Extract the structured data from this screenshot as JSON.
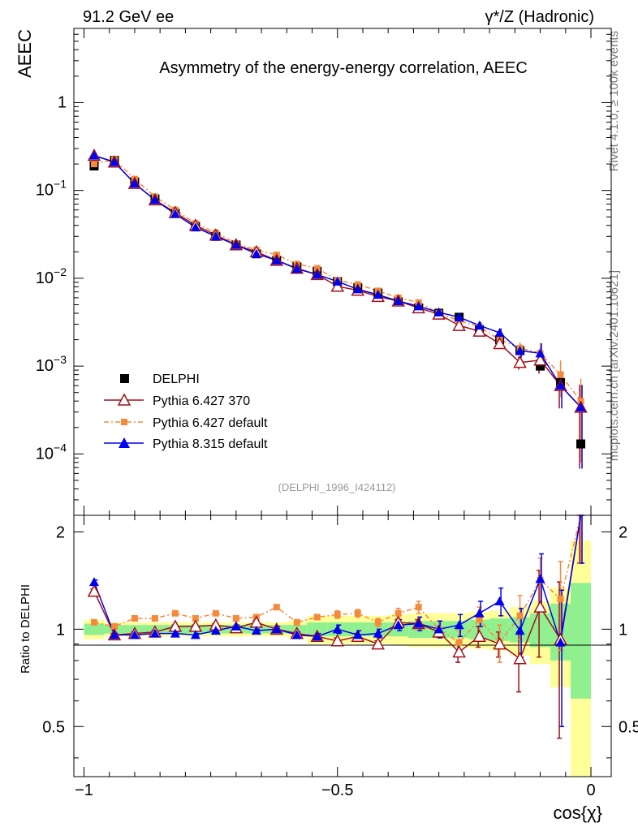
{
  "header": {
    "left": "91.2 GeV ee",
    "right": "γ*/Z (Hadronic)"
  },
  "side_labels": {
    "top": "Rivet 4.1.0, ≥ 100k events",
    "bottom": "mcplots.cern.ch [arXiv:2401.10621]"
  },
  "chart_data": [
    {
      "type": "line",
      "title": "Asymmetry of the energy-energy correlation, AEEC",
      "ylabel": "AEEC",
      "xlabel": "cos{χ}",
      "yscale": "log",
      "ylim": [
        2e-05,
        7
      ],
      "xlim": [
        -1.02,
        0.04
      ],
      "analysis_label": "(DELPHI_1996_I424112)",
      "legend_position": "bottom-left",
      "y_ticks": [
        {
          "value": 0.0001,
          "base": "10",
          "exp": "−4"
        },
        {
          "value": 0.001,
          "base": "10",
          "exp": "−3"
        },
        {
          "value": 0.01,
          "base": "10",
          "exp": "−2"
        },
        {
          "value": 0.1,
          "base": "10",
          "exp": "−1"
        },
        {
          "value": 1,
          "base": "1",
          "exp": ""
        }
      ],
      "x": [
        -0.98,
        -0.94,
        -0.9,
        -0.86,
        -0.82,
        -0.78,
        -0.74,
        -0.7,
        -0.66,
        -0.62,
        -0.58,
        -0.54,
        -0.5,
        -0.46,
        -0.42,
        -0.38,
        -0.34,
        -0.3,
        -0.26,
        -0.22,
        -0.18,
        -0.14,
        -0.1,
        -0.06,
        -0.02
      ],
      "series": [
        {
          "name": "DELPHI",
          "color": "#000000",
          "marker": "square",
          "values": [
            0.19,
            0.22,
            0.125,
            0.08,
            0.055,
            0.039,
            0.03,
            0.024,
            0.019,
            0.016,
            0.0135,
            0.012,
            0.0092,
            0.0078,
            0.0068,
            0.0054,
            0.0046,
            0.004,
            0.0036,
            0.0026,
            0.002,
            0.0015,
            0.001,
            0.00065,
            0.00013
          ]
        },
        {
          "name": "Pythia 6.427 370",
          "color": "#a0101a",
          "marker": "triangle-open",
          "values": [
            0.25,
            0.21,
            0.12,
            0.078,
            0.056,
            0.04,
            0.031,
            0.024,
            0.02,
            0.016,
            0.013,
            0.011,
            0.0081,
            0.0073,
            0.0062,
            0.0055,
            0.0046,
            0.0039,
            0.0029,
            0.0025,
            0.0018,
            0.0011,
            0.00117,
            0.0006,
            0.00034
          ]
        },
        {
          "name": "Pythia 6.427 default",
          "color": "#f58a3c",
          "marker": "square",
          "values": [
            0.2,
            0.225,
            0.135,
            0.085,
            0.06,
            0.042,
            0.033,
            0.025,
            0.021,
            0.0185,
            0.0145,
            0.013,
            0.0095,
            0.0085,
            0.0072,
            0.006,
            0.0053,
            0.004,
            0.0033,
            0.0028,
            0.002,
            0.0016,
            0.0014,
            0.0008,
            0.0004
          ]
        },
        {
          "name": "Pythia 8.315 default",
          "color": "#0000ee",
          "marker": "triangle",
          "values": [
            0.25,
            0.21,
            0.12,
            0.078,
            0.054,
            0.038,
            0.03,
            0.024,
            0.019,
            0.016,
            0.0128,
            0.011,
            0.0092,
            0.0075,
            0.0065,
            0.0055,
            0.0048,
            0.0041,
            0.0036,
            0.0029,
            0.0024,
            0.0015,
            0.0014,
            0.0006,
            0.00034
          ]
        }
      ]
    },
    {
      "type": "line",
      "ylabel": "Ratio to DELPHI",
      "xlabel": "cos{χ}",
      "ylim": [
        0.35,
        2.25
      ],
      "xlim": [
        -1.02,
        0.04
      ],
      "y_ticks": [
        "0.5",
        "1",
        "2"
      ],
      "x_ticks": [
        "−1",
        "−0.5",
        "0"
      ],
      "x": [
        -0.98,
        -0.94,
        -0.9,
        -0.86,
        -0.82,
        -0.78,
        -0.74,
        -0.7,
        -0.66,
        -0.62,
        -0.58,
        -0.54,
        -0.5,
        -0.46,
        -0.42,
        -0.38,
        -0.34,
        -0.3,
        -0.26,
        -0.22,
        -0.18,
        -0.14,
        -0.1,
        -0.06,
        -0.02
      ],
      "bands": {
        "green_half": [
          0.04,
          0.03,
          0.03,
          0.03,
          0.03,
          0.03,
          0.03,
          0.03,
          0.03,
          0.03,
          0.03,
          0.05,
          0.05,
          0.05,
          0.05,
          0.05,
          0.06,
          0.06,
          0.06,
          0.07,
          0.08,
          0.09,
          0.12,
          0.2,
          0.39
        ],
        "yellow_half": [
          0.07,
          0.05,
          0.05,
          0.05,
          0.05,
          0.05,
          0.05,
          0.05,
          0.05,
          0.05,
          0.06,
          0.1,
          0.1,
          0.1,
          0.1,
          0.11,
          0.12,
          0.12,
          0.12,
          0.13,
          0.14,
          0.17,
          0.22,
          0.34,
          0.88
        ]
      },
      "series": [
        {
          "name": "Pythia 6.427 370",
          "color": "#a0101a",
          "values": [
            1.31,
            0.96,
            0.97,
            0.98,
            1.02,
            1.02,
            1.03,
            1.01,
            1.05,
            1.0,
            0.97,
            0.95,
            0.92,
            0.95,
            0.9,
            1.05,
            1.04,
            0.98,
            0.85,
            0.95,
            0.9,
            0.81,
            1.17,
            0.93,
            2.6
          ],
          "errors": [
            0.02,
            0.01,
            0.01,
            0.01,
            0.01,
            0.01,
            0.01,
            0.01,
            0.01,
            0.01,
            0.01,
            0.01,
            0.02,
            0.02,
            0.02,
            0.02,
            0.03,
            0.03,
            0.06,
            0.07,
            0.08,
            0.17,
            0.35,
            0.47,
            1.0
          ]
        },
        {
          "name": "Pythia 6.427 default",
          "color": "#f58a3c",
          "values": [
            1.05,
            1.02,
            1.08,
            1.08,
            1.12,
            1.08,
            1.12,
            1.08,
            1.09,
            1.17,
            1.05,
            1.09,
            1.11,
            1.12,
            1.05,
            1.12,
            1.17,
            1.0,
            0.91,
            1.07,
            0.91,
            1.1,
            1.42,
            1.24,
            2.6
          ],
          "errors": [
            0.02,
            0.01,
            0.01,
            0.01,
            0.01,
            0.01,
            0.01,
            0.01,
            0.01,
            0.02,
            0.02,
            0.02,
            0.03,
            0.03,
            0.03,
            0.04,
            0.05,
            0.06,
            0.08,
            0.1,
            0.12,
            0.17,
            0.24,
            0.38,
            1.0
          ]
        },
        {
          "name": "Pythia 8.315 default",
          "color": "#0000ee",
          "values": [
            1.4,
            0.96,
            0.96,
            0.97,
            0.97,
            0.96,
            0.99,
            1.02,
            0.99,
            1.0,
            0.96,
            0.95,
            1.0,
            0.96,
            0.97,
            1.03,
            1.04,
            1.0,
            1.03,
            1.12,
            1.22,
            0.99,
            1.43,
            0.91,
            2.6
          ],
          "errors": [
            0.02,
            0.01,
            0.01,
            0.01,
            0.01,
            0.01,
            0.01,
            0.01,
            0.01,
            0.02,
            0.02,
            0.02,
            0.03,
            0.03,
            0.03,
            0.04,
            0.05,
            0.06,
            0.08,
            0.1,
            0.12,
            0.17,
            0.28,
            0.41,
            1.0
          ]
        }
      ]
    }
  ]
}
